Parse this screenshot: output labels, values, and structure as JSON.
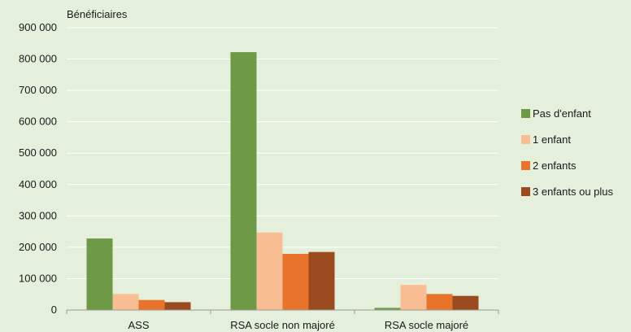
{
  "chart_data": {
    "type": "bar",
    "ylabel": "Bénéficiaires",
    "xlabel": "",
    "ylim": [
      0,
      900000
    ],
    "yticks": [
      0,
      100000,
      200000,
      300000,
      400000,
      500000,
      600000,
      700000,
      800000,
      900000
    ],
    "ytick_labels": [
      "0",
      "100 000",
      "200 000",
      "300 000",
      "400 000",
      "500 000",
      "600 000",
      "700 000",
      "800 000",
      "900 000"
    ],
    "categories": [
      "ASS",
      "RSA socle non majoré",
      "RSA socle majoré"
    ],
    "series": [
      {
        "name": "Pas d'enfant",
        "color": "#6e9a47",
        "values": [
          228000,
          822000,
          7000
        ]
      },
      {
        "name": "1 enfant",
        "color": "#f9bd93",
        "values": [
          51000,
          247000,
          80000
        ]
      },
      {
        "name": "2 enfants",
        "color": "#e8732a",
        "values": [
          32000,
          179000,
          51000
        ]
      },
      {
        "name": "3 enfants ou plus",
        "color": "#9b4a1f",
        "values": [
          25000,
          185000,
          45000
        ]
      }
    ],
    "grid": true,
    "legend_position": "right"
  }
}
